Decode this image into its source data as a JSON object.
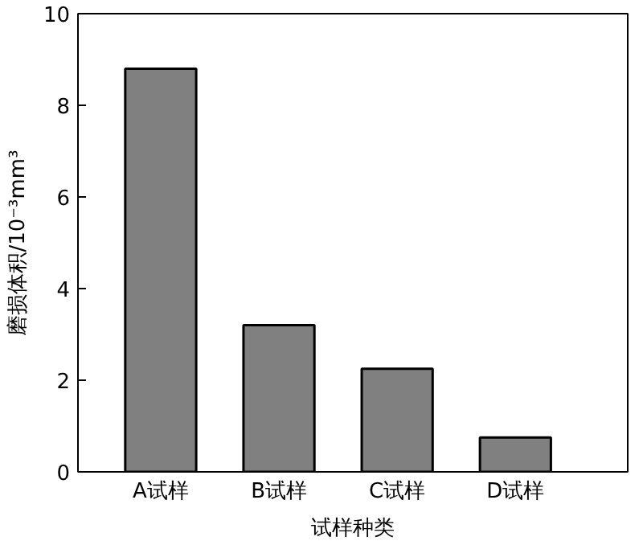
{
  "chart_data": {
    "type": "bar",
    "xlabel": "试样种类",
    "ylabel": "磨损体积/10⁻³mm³",
    "categories": [
      "A试样",
      "B试样",
      "C试样",
      "D试样"
    ],
    "values": [
      8.8,
      3.2,
      2.25,
      0.75
    ],
    "color": "#808080",
    "ylim": [
      0,
      10
    ],
    "yticks": [
      0,
      2,
      4,
      6,
      8,
      10
    ],
    "grid": false
  }
}
